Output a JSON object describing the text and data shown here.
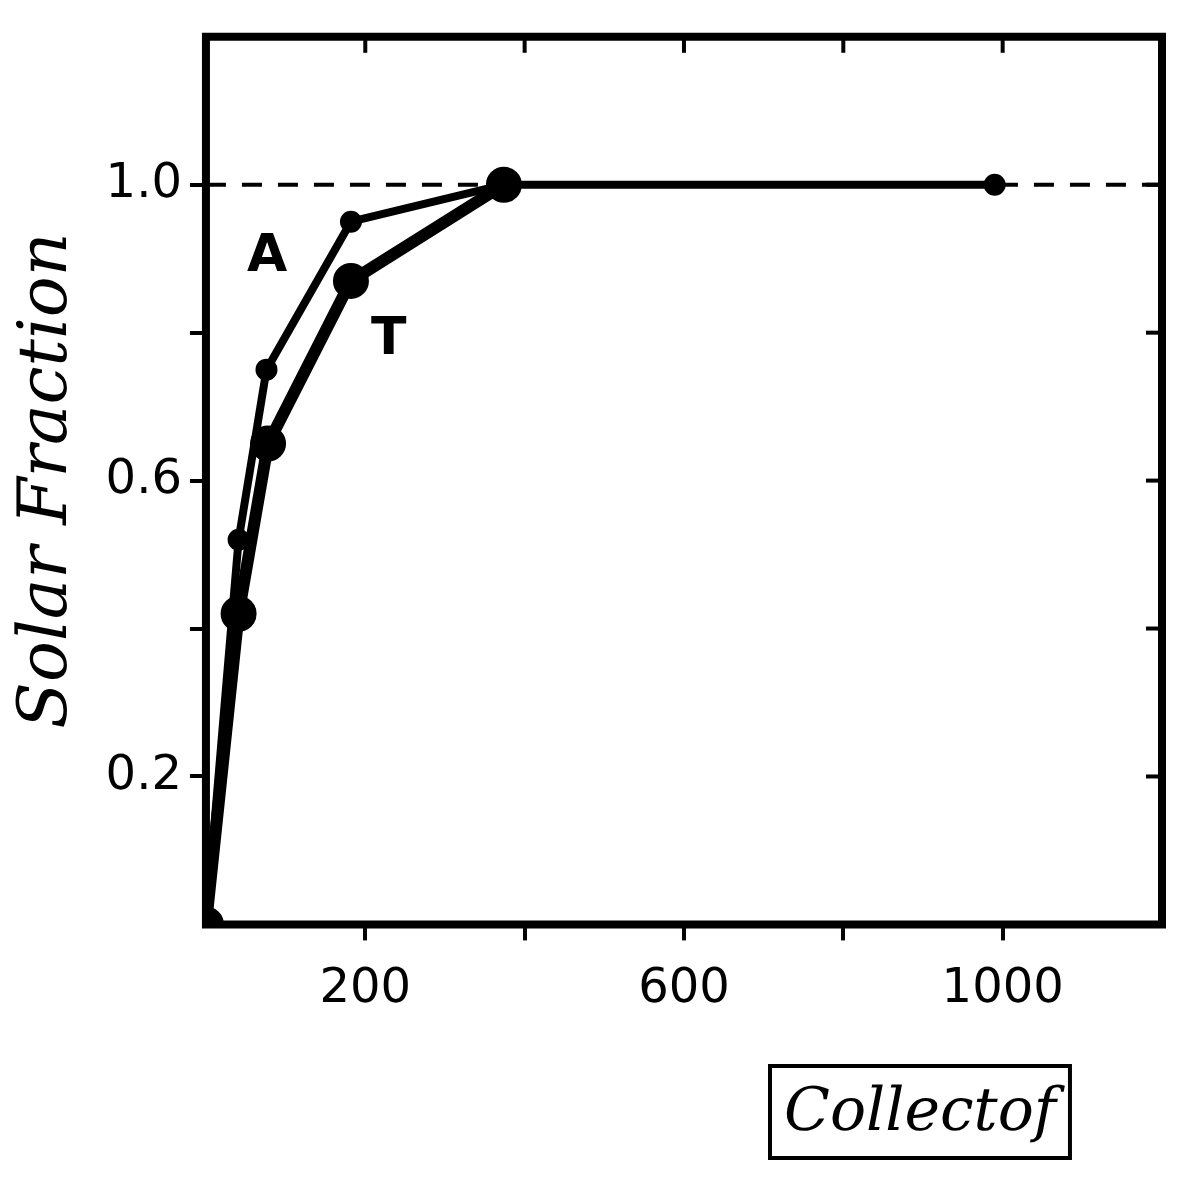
{
  "chart_data": {
    "type": "line",
    "xlabel": "Collectof",
    "ylabel": "Solar Fraction",
    "xlim": [
      0,
      1200
    ],
    "xticks": [
      {
        "value": 200,
        "label": "200"
      },
      {
        "value": 400,
        "label": null
      },
      {
        "value": 600,
        "label": "600"
      },
      {
        "value": 800,
        "label": null
      },
      {
        "value": 1000,
        "label": "1000"
      }
    ],
    "ylim": [
      0,
      1.2
    ],
    "yticks": [
      {
        "value": 0.2,
        "label": "0.2"
      },
      {
        "value": 0.4,
        "label": null
      },
      {
        "value": 0.6,
        "label": "0.6"
      },
      {
        "value": 0.8,
        "label": null
      },
      {
        "value": 1,
        "label": "1.0"
      }
    ],
    "series": [
      {
        "name": "A",
        "color": "#000000",
        "x": [
          0,
          41,
          76,
          182,
          374,
          990
        ],
        "values": [
          0,
          0.52,
          0.75,
          0.95,
          1.0,
          1.0
        ]
      },
      {
        "name": "T",
        "color": "#000000",
        "x": [
          0,
          41,
          78,
          182,
          374
        ],
        "values": [
          0,
          0.42,
          0.65,
          0.87,
          1.0
        ]
      }
    ],
    "ref_lines": [
      {
        "axis": "y",
        "value": 1,
        "line_style": "dashed",
        "color": "#000000"
      }
    ],
    "grid": false,
    "legend": false,
    "marker": "circle",
    "line_style": "solid"
  }
}
